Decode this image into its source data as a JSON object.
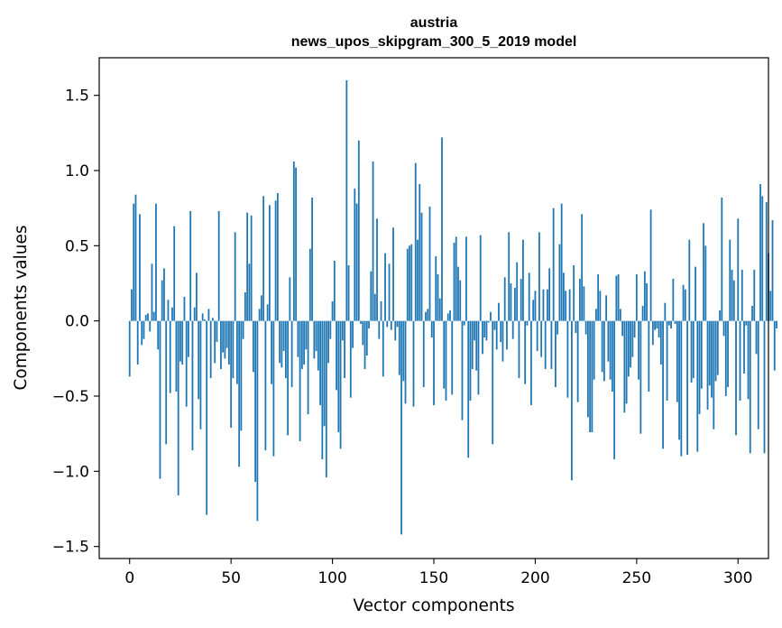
{
  "chart_data": {
    "type": "bar",
    "title_line1": "austria",
    "title_line2": "news_upos_skipgram_300_5_2019 model",
    "xlabel": "Vector components",
    "ylabel": "Components values",
    "xlim": [
      -15,
      315
    ],
    "ylim": [
      -1.58,
      1.75
    ],
    "xticks": [
      0,
      50,
      100,
      150,
      200,
      250,
      300
    ],
    "xtick_labels": [
      "0",
      "50",
      "100",
      "150",
      "200",
      "250",
      "300"
    ],
    "yticks": [
      -1.5,
      -1.0,
      -0.5,
      0.0,
      0.5,
      1.0,
      1.5
    ],
    "ytick_labels": [
      "−1.5",
      "−1.0",
      "−0.5",
      "0.0",
      "0.5",
      "1.0",
      "1.5"
    ],
    "bar_color": "#1f77b4",
    "values": [
      -0.37,
      0.21,
      0.78,
      0.84,
      -0.29,
      0.71,
      -0.16,
      -0.12,
      0.04,
      0.05,
      -0.07,
      0.38,
      0.06,
      0.78,
      -0.19,
      -1.05,
      0.27,
      0.35,
      -0.82,
      0.14,
      -0.48,
      0.09,
      0.63,
      -0.47,
      -1.16,
      -0.27,
      -0.29,
      0.16,
      -0.57,
      -0.24,
      0.73,
      -0.86,
      0.09,
      0.32,
      -0.52,
      -0.72,
      0.05,
      0.01,
      -1.29,
      0.08,
      -0.38,
      0.02,
      -0.28,
      -0.14,
      0.73,
      -0.32,
      -0.21,
      -0.25,
      -0.18,
      -0.29,
      -0.71,
      -0.38,
      0.59,
      -0.42,
      -0.97,
      -0.73,
      -0.12,
      0.19,
      0.72,
      0.38,
      0.7,
      -0.34,
      -1.07,
      -1.33,
      0.08,
      0.17,
      0.83,
      -0.86,
      0.11,
      0.77,
      -0.42,
      -0.9,
      0.8,
      0.85,
      -0.28,
      -0.31,
      -0.2,
      -0.38,
      -0.76,
      0.29,
      -0.44,
      1.06,
      1.02,
      -0.24,
      -0.8,
      -0.32,
      -0.29,
      -0.19,
      -0.62,
      0.48,
      0.82,
      -0.25,
      -0.2,
      -0.33,
      -0.56,
      -0.92,
      -0.7,
      -1.04,
      -0.28,
      -0.12,
      0.13,
      0.4,
      -0.46,
      -0.74,
      -0.85,
      -0.13,
      -0.38,
      1.6,
      0.37,
      -0.51,
      -0.18,
      0.88,
      0.78,
      1.2,
      -0.02,
      -0.16,
      -0.32,
      -0.23,
      -0.05,
      0.33,
      1.06,
      0.18,
      0.68,
      -0.12,
      0.13,
      -0.37,
      0.45,
      -0.04,
      0.38,
      -0.06,
      0.62,
      -0.13,
      -0.04,
      -0.36,
      -1.42,
      -0.4,
      -0.55,
      0.48,
      0.5,
      0.51,
      -0.57,
      1.05,
      0.54,
      0.91,
      0.72,
      -0.44,
      0.06,
      0.08,
      0.76,
      -0.11,
      -0.56,
      0.43,
      0.31,
      0.15,
      1.22,
      -0.45,
      -0.53,
      0.05,
      0.07,
      -0.49,
      0.52,
      0.56,
      0.36,
      0.27,
      -0.66,
      -0.03,
      0.56,
      -0.91,
      -0.53,
      -0.32,
      -0.13,
      -0.33,
      -0.49,
      0.57,
      -0.22,
      -0.11,
      -0.13,
      -0.01,
      0.06,
      -0.82,
      -0.06,
      -0.19,
      0.12,
      -0.14,
      -0.27,
      0.29,
      -0.19,
      0.59,
      0.25,
      -0.12,
      0.22,
      0.39,
      -0.38,
      0.28,
      0.54,
      -0.42,
      -0.03,
      0.32,
      -0.56,
      0.14,
      0.2,
      -0.2,
      0.59,
      -0.24,
      0.21,
      -0.32,
      0.21,
      0.35,
      -0.32,
      0.75,
      -0.44,
      -0.09,
      0.51,
      0.78,
      0.32,
      0.2,
      -0.51,
      0.21,
      -1.06,
      0.37,
      -0.08,
      -0.54,
      0.28,
      0.71,
      0.23,
      -0.09,
      -0.64,
      -0.74,
      -0.74,
      -0.39,
      0.08,
      0.31,
      0.2,
      -0.34,
      -0.4,
      0.17,
      -0.27,
      -0.39,
      -0.47,
      -0.92,
      0.3,
      0.31,
      0.08,
      -0.1,
      -0.61,
      -0.55,
      -0.37,
      -0.31,
      -0.24,
      -0.11,
      0.31,
      -0.39,
      -0.75,
      0.1,
      0.33,
      0.25,
      -0.47,
      0.74,
      -0.16,
      -0.06,
      -0.05,
      -0.11,
      -0.29,
      -0.85,
      0.12,
      -0.53,
      -0.03,
      -0.05,
      0.28,
      -0.02,
      -0.54,
      -0.79,
      -0.9,
      0.24,
      0.21,
      -0.89,
      0.54,
      -0.41,
      -0.38,
      0.36,
      -0.87,
      -0.62,
      -0.45,
      0.65,
      0.5,
      -0.59,
      -0.43,
      -0.51,
      -0.72,
      -0.4,
      -0.36,
      0.07,
      0.82,
      -0.1,
      -0.5,
      -0.44,
      0.54,
      0.34,
      0.27,
      -0.76,
      0.68,
      -0.53,
      0.34,
      -0.35,
      -0.03,
      -0.52,
      -0.88,
      0.1,
      0.34,
      -0.22,
      -0.72,
      0.91,
      0.83,
      -0.88,
      0.79,
      0.45,
      0.2,
      0.67,
      -0.33,
      -0.05
    ]
  }
}
